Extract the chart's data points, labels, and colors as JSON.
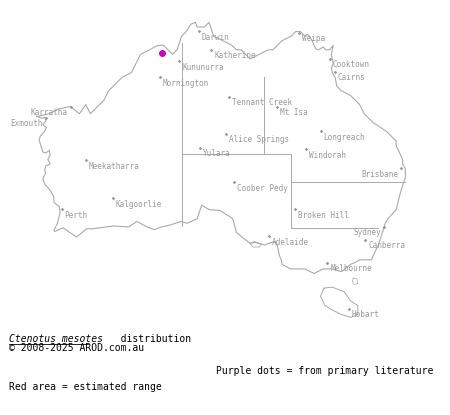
{
  "title_italic": "Ctenotus mesotes",
  "title_rest": " distribution",
  "copyright": "© 2008-2025 AROD.com.au",
  "legend_purple": "Purple dots = from primary literature",
  "legend_red": "Red area = estimated range",
  "background_color": "#ffffff",
  "map_outline_color": "#aaaaaa",
  "state_border_color": "#aaaaaa",
  "dot_color": "#cc00cc",
  "dot_size": 4,
  "font_color": "#999999",
  "text_color": "#000000",
  "xlim": [
    112.5,
    155.0
  ],
  "ylim": [
    -44.5,
    -9.5
  ],
  "figsize": [
    4.5,
    4.15
  ],
  "dpi": 100,
  "font_size_city": 5.5,
  "cities": [
    {
      "name": "Darwin",
      "lon": 130.85,
      "lat": -12.46,
      "ha": "left",
      "ox": 2,
      "oy": -1
    },
    {
      "name": "Katherine",
      "lon": 132.26,
      "lat": -14.47,
      "ha": "left",
      "ox": 2,
      "oy": -1
    },
    {
      "name": "Kununurra",
      "lon": 128.74,
      "lat": -15.77,
      "ha": "left",
      "ox": 2,
      "oy": -1
    },
    {
      "name": "Weipa",
      "lon": 141.87,
      "lat": -12.63,
      "ha": "left",
      "ox": 2,
      "oy": -1
    },
    {
      "name": "Cooktown",
      "lon": 145.25,
      "lat": -15.47,
      "ha": "left",
      "ox": 2,
      "oy": -1
    },
    {
      "name": "Cairns",
      "lon": 145.77,
      "lat": -16.92,
      "ha": "left",
      "ox": 2,
      "oy": -1
    },
    {
      "name": "Mornington",
      "lon": 126.62,
      "lat": -17.52,
      "ha": "left",
      "ox": 2,
      "oy": -1
    },
    {
      "name": "Tennant Creek",
      "lon": 134.19,
      "lat": -19.65,
      "ha": "left",
      "ox": 2,
      "oy": -1
    },
    {
      "name": "Mt Isa",
      "lon": 139.49,
      "lat": -20.73,
      "ha": "left",
      "ox": 2,
      "oy": -1
    },
    {
      "name": "Karratha",
      "lon": 116.84,
      "lat": -20.74,
      "ha": "right",
      "ox": -2,
      "oy": -1
    },
    {
      "name": "Exmouth",
      "lon": 114.12,
      "lat": -21.93,
      "ha": "right",
      "ox": -2,
      "oy": -1
    },
    {
      "name": "Alice Springs",
      "lon": 133.88,
      "lat": -23.7,
      "ha": "left",
      "ox": 2,
      "oy": -1
    },
    {
      "name": "Longreach",
      "lon": 144.25,
      "lat": -23.44,
      "ha": "left",
      "ox": 2,
      "oy": -1
    },
    {
      "name": "Yulara",
      "lon": 130.99,
      "lat": -25.24,
      "ha": "left",
      "ox": 2,
      "oy": -1
    },
    {
      "name": "Windorah",
      "lon": 142.65,
      "lat": -25.42,
      "ha": "left",
      "ox": 2,
      "oy": -1
    },
    {
      "name": "Meekatharra",
      "lon": 118.5,
      "lat": -26.6,
      "ha": "left",
      "ox": 2,
      "oy": -1
    },
    {
      "name": "Coober Pedy",
      "lon": 134.72,
      "lat": -29.01,
      "ha": "left",
      "ox": 2,
      "oy": -1
    },
    {
      "name": "Brisbane",
      "lon": 153.02,
      "lat": -27.47,
      "ha": "right",
      "ox": -2,
      "oy": -1
    },
    {
      "name": "Kalgoorlie",
      "lon": 121.47,
      "lat": -30.75,
      "ha": "left",
      "ox": 2,
      "oy": -1
    },
    {
      "name": "Broken Hill",
      "lon": 141.47,
      "lat": -31.95,
      "ha": "left",
      "ox": 2,
      "oy": -1
    },
    {
      "name": "Perth",
      "lon": 115.86,
      "lat": -31.95,
      "ha": "left",
      "ox": 2,
      "oy": -1
    },
    {
      "name": "Sydney",
      "lon": 151.21,
      "lat": -33.87,
      "ha": "right",
      "ox": -2,
      "oy": -1
    },
    {
      "name": "Adelaide",
      "lon": 138.6,
      "lat": -34.93,
      "ha": "left",
      "ox": 2,
      "oy": -1
    },
    {
      "name": "Canberra",
      "lon": 149.13,
      "lat": -35.28,
      "ha": "left",
      "ox": 2,
      "oy": -1
    },
    {
      "name": "Melbourne",
      "lon": 144.96,
      "lat": -37.81,
      "ha": "left",
      "ox": 2,
      "oy": -1
    },
    {
      "name": "Hobart",
      "lon": 147.33,
      "lat": -42.88,
      "ha": "left",
      "ox": 2,
      "oy": -1
    }
  ],
  "purple_dots": [
    {
      "lon": 126.85,
      "lat": -14.85
    }
  ],
  "australia_coast": [
    [
      113.15,
      -21.8
    ],
    [
      113.7,
      -22.0
    ],
    [
      114.0,
      -21.9
    ],
    [
      114.15,
      -22.3
    ],
    [
      113.8,
      -22.7
    ],
    [
      114.2,
      -23.0
    ],
    [
      114.0,
      -23.4
    ],
    [
      113.5,
      -24.0
    ],
    [
      113.4,
      -24.4
    ],
    [
      113.8,
      -25.7
    ],
    [
      114.15,
      -25.8
    ],
    [
      114.5,
      -25.5
    ],
    [
      114.6,
      -26.0
    ],
    [
      114.35,
      -26.5
    ],
    [
      114.6,
      -27.0
    ],
    [
      114.15,
      -27.2
    ],
    [
      114.0,
      -27.6
    ],
    [
      114.1,
      -28.0
    ],
    [
      113.8,
      -28.6
    ],
    [
      114.0,
      -29.2
    ],
    [
      114.6,
      -29.9
    ],
    [
      115.0,
      -30.6
    ],
    [
      115.0,
      -31.2
    ],
    [
      115.6,
      -31.7
    ],
    [
      115.7,
      -32.3
    ],
    [
      115.4,
      -33.5
    ],
    [
      115.0,
      -34.3
    ],
    [
      115.1,
      -34.4
    ],
    [
      116.0,
      -34.0
    ],
    [
      117.5,
      -35.0
    ],
    [
      118.6,
      -34.1
    ],
    [
      119.3,
      -34.1
    ],
    [
      120.8,
      -33.9
    ],
    [
      121.5,
      -33.8
    ],
    [
      123.2,
      -33.9
    ],
    [
      124.1,
      -33.3
    ],
    [
      125.2,
      -33.9
    ],
    [
      126.0,
      -34.2
    ],
    [
      126.8,
      -33.9
    ],
    [
      127.7,
      -33.7
    ],
    [
      128.95,
      -33.3
    ],
    [
      129.6,
      -33.5
    ],
    [
      130.7,
      -33.0
    ],
    [
      131.2,
      -31.5
    ],
    [
      132.0,
      -32.0
    ],
    [
      133.2,
      -32.1
    ],
    [
      134.6,
      -33.0
    ],
    [
      135.0,
      -34.5
    ],
    [
      135.6,
      -35.0
    ],
    [
      136.5,
      -35.7
    ],
    [
      137.0,
      -35.6
    ],
    [
      137.5,
      -35.7
    ],
    [
      138.1,
      -35.9
    ],
    [
      138.5,
      -35.7
    ],
    [
      139.2,
      -35.5
    ],
    [
      139.5,
      -36.0
    ],
    [
      139.7,
      -37.0
    ],
    [
      139.9,
      -37.5
    ],
    [
      140.0,
      -38.0
    ],
    [
      140.9,
      -38.5
    ],
    [
      141.6,
      -38.5
    ],
    [
      142.5,
      -38.5
    ],
    [
      143.5,
      -39.0
    ],
    [
      144.5,
      -38.5
    ],
    [
      145.5,
      -38.5
    ],
    [
      146.5,
      -38.8
    ],
    [
      147.5,
      -38.0
    ],
    [
      148.0,
      -37.8
    ],
    [
      148.5,
      -37.5
    ],
    [
      149.0,
      -37.5
    ],
    [
      149.8,
      -37.5
    ],
    [
      150.0,
      -37.0
    ],
    [
      150.5,
      -36.0
    ],
    [
      151.0,
      -34.5
    ],
    [
      151.3,
      -33.5
    ],
    [
      151.6,
      -33.0
    ],
    [
      152.5,
      -32.0
    ],
    [
      153.0,
      -30.0
    ],
    [
      153.5,
      -28.5
    ],
    [
      153.5,
      -27.5
    ],
    [
      153.2,
      -27.0
    ],
    [
      153.2,
      -26.5
    ],
    [
      152.5,
      -25.0
    ],
    [
      152.5,
      -24.5
    ],
    [
      151.5,
      -23.5
    ],
    [
      150.5,
      -22.8
    ],
    [
      150.0,
      -22.5
    ],
    [
      149.0,
      -21.5
    ],
    [
      148.5,
      -20.5
    ],
    [
      148.0,
      -20.0
    ],
    [
      147.5,
      -19.5
    ],
    [
      146.5,
      -19.0
    ],
    [
      146.0,
      -18.5
    ],
    [
      145.8,
      -17.5
    ],
    [
      145.5,
      -17.0
    ],
    [
      145.4,
      -16.5
    ],
    [
      145.6,
      -16.0
    ],
    [
      145.4,
      -15.0
    ],
    [
      145.5,
      -14.5
    ],
    [
      145.6,
      -14.0
    ],
    [
      145.2,
      -14.5
    ],
    [
      144.8,
      -14.5
    ],
    [
      144.5,
      -14.2
    ],
    [
      144.0,
      -14.5
    ],
    [
      143.7,
      -14.4
    ],
    [
      143.5,
      -14.0
    ],
    [
      143.3,
      -13.5
    ],
    [
      142.8,
      -12.8
    ],
    [
      142.5,
      -13.0
    ],
    [
      142.0,
      -12.5
    ],
    [
      141.5,
      -12.5
    ],
    [
      141.0,
      -13.0
    ],
    [
      140.0,
      -13.5
    ],
    [
      139.5,
      -14.0
    ],
    [
      139.0,
      -14.5
    ],
    [
      138.5,
      -14.5
    ],
    [
      137.5,
      -15.0
    ],
    [
      136.5,
      -15.5
    ],
    [
      136.0,
      -15.0
    ],
    [
      135.5,
      -14.5
    ],
    [
      135.0,
      -14.5
    ],
    [
      134.5,
      -14.0
    ],
    [
      133.5,
      -13.5
    ],
    [
      132.5,
      -13.0
    ],
    [
      132.0,
      -11.5
    ],
    [
      131.5,
      -12.0
    ],
    [
      130.7,
      -12.0
    ],
    [
      130.5,
      -11.5
    ],
    [
      130.0,
      -11.7
    ],
    [
      129.5,
      -12.5
    ],
    [
      129.0,
      -13.0
    ],
    [
      128.5,
      -14.5
    ],
    [
      128.0,
      -15.0
    ],
    [
      127.5,
      -14.5
    ],
    [
      127.0,
      -14.0
    ],
    [
      126.5,
      -14.0
    ],
    [
      126.0,
      -14.2
    ],
    [
      125.5,
      -14.5
    ],
    [
      124.5,
      -15.0
    ],
    [
      124.0,
      -16.0
    ],
    [
      123.5,
      -17.0
    ],
    [
      122.5,
      -17.5
    ],
    [
      122.0,
      -18.0
    ],
    [
      121.5,
      -18.5
    ],
    [
      121.0,
      -19.0
    ],
    [
      120.5,
      -20.0
    ],
    [
      120.0,
      -20.5
    ],
    [
      119.5,
      -21.0
    ],
    [
      119.0,
      -21.5
    ],
    [
      118.5,
      -20.5
    ],
    [
      117.8,
      -21.5
    ],
    [
      116.8,
      -20.7
    ],
    [
      115.5,
      -21.0
    ],
    [
      114.5,
      -21.5
    ],
    [
      113.15,
      -21.8
    ]
  ],
  "tasmania": [
    [
      144.6,
      -40.6
    ],
    [
      145.5,
      -40.5
    ],
    [
      146.8,
      -41.0
    ],
    [
      147.5,
      -42.0
    ],
    [
      148.3,
      -42.5
    ],
    [
      148.3,
      -43.5
    ],
    [
      147.5,
      -43.8
    ],
    [
      146.5,
      -43.5
    ],
    [
      145.5,
      -43.0
    ],
    [
      144.7,
      -42.5
    ],
    [
      144.2,
      -41.5
    ],
    [
      144.6,
      -40.6
    ]
  ],
  "kangaroo_island": [
    [
      136.5,
      -35.7
    ],
    [
      137.0,
      -35.5
    ],
    [
      137.7,
      -35.8
    ],
    [
      137.5,
      -36.1
    ],
    [
      136.8,
      -36.1
    ],
    [
      136.5,
      -35.7
    ]
  ],
  "flinders_island": [
    [
      147.8,
      -39.5
    ],
    [
      148.2,
      -39.6
    ],
    [
      148.3,
      -40.1
    ],
    [
      147.9,
      -40.2
    ],
    [
      147.7,
      -39.9
    ],
    [
      147.8,
      -39.5
    ]
  ]
}
